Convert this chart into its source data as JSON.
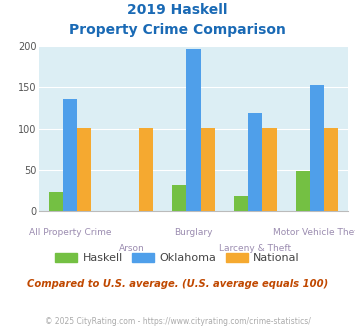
{
  "title_line1": "2019 Haskell",
  "title_line2": "Property Crime Comparison",
  "categories": [
    "All Property Crime",
    "Arson",
    "Burglary",
    "Larceny & Theft",
    "Motor Vehicle Theft"
  ],
  "haskell": [
    23,
    0,
    32,
    19,
    49
  ],
  "oklahoma": [
    136,
    0,
    197,
    119,
    153
  ],
  "national": [
    101,
    101,
    101,
    101,
    101
  ],
  "haskell_color": "#74c043",
  "oklahoma_color": "#4f9fea",
  "national_color": "#f5a930",
  "bg_color": "#dceef4",
  "title_color": "#1a6ab5",
  "xlabel_color": "#9b8cb0",
  "ylabel_max": 200,
  "yticks": [
    0,
    50,
    100,
    150,
    200
  ],
  "note": "Compared to U.S. average. (U.S. average equals 100)",
  "footer": "© 2025 CityRating.com - https://www.cityrating.com/crime-statistics/",
  "note_color": "#c04800",
  "footer_color": "#aaaaaa",
  "legend_labels": [
    "Haskell",
    "Oklahoma",
    "National"
  ],
  "bar_width": 0.23
}
